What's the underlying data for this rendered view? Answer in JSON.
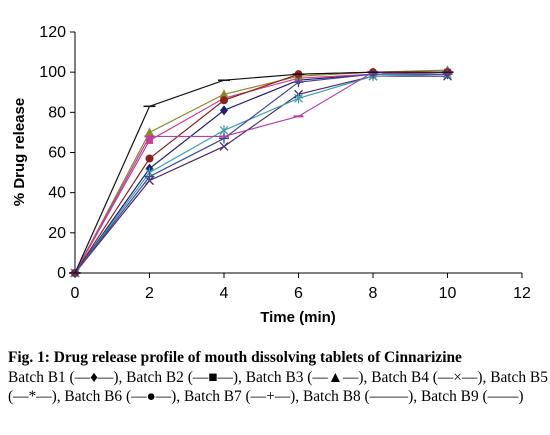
{
  "chart_data": {
    "type": "line",
    "xlabel": "Time (min)",
    "ylabel": "% Drug release",
    "xlim": [
      0,
      12
    ],
    "ylim": [
      0,
      120
    ],
    "xticks": [
      0,
      2,
      4,
      6,
      8,
      10,
      12
    ],
    "yticks": [
      0,
      20,
      40,
      60,
      80,
      100,
      120
    ],
    "grid": false,
    "legend": "none",
    "x": [
      0,
      2,
      4,
      6,
      8,
      10
    ],
    "series": [
      {
        "name": "Batch B1",
        "marker": "diamond",
        "color": "#1f1f6e",
        "values": [
          0,
          52,
          81,
          96,
          99,
          100
        ]
      },
      {
        "name": "Batch B2",
        "marker": "square",
        "color": "#d63a8c",
        "values": [
          0,
          66,
          87,
          97,
          99,
          100
        ]
      },
      {
        "name": "Batch B3",
        "marker": "triangle",
        "color": "#8a8a2a",
        "values": [
          0,
          70,
          89,
          98,
          100,
          101
        ]
      },
      {
        "name": "Batch B4",
        "marker": "x",
        "color": "#4a2d6a",
        "values": [
          0,
          46,
          63,
          89,
          98,
          98
        ]
      },
      {
        "name": "Batch B5",
        "marker": "star",
        "color": "#3aa0b0",
        "values": [
          0,
          50,
          71,
          87,
          98,
          99
        ]
      },
      {
        "name": "Batch B6",
        "marker": "circle",
        "color": "#8a2020",
        "values": [
          0,
          57,
          86,
          99,
          100,
          100
        ]
      },
      {
        "name": "Batch B7",
        "marker": "plus",
        "color": "#3a4a9a",
        "values": [
          0,
          48,
          67,
          95,
          99,
          99
        ]
      },
      {
        "name": "Batch B8",
        "marker": "dash",
        "color": "#b040b0",
        "values": [
          0,
          68,
          68,
          78,
          100,
          100
        ]
      },
      {
        "name": "Batch B9",
        "marker": "line",
        "color": "#111111",
        "values": [
          0,
          83,
          96,
          99,
          100,
          100
        ]
      }
    ]
  },
  "caption": {
    "title": "Fig. 1: Drug release profile of mouth dissolving tablets of Cinnarizine",
    "body": "Batch B1 (—♦—), Batch B2 (—■—), Batch B3 (—▲—), Batch B4 (—×—), Batch B5 (—*—), Batch B6 (—●—), Batch B7 (—+—), Batch B8 (—–—), Batch B9 (——)"
  }
}
